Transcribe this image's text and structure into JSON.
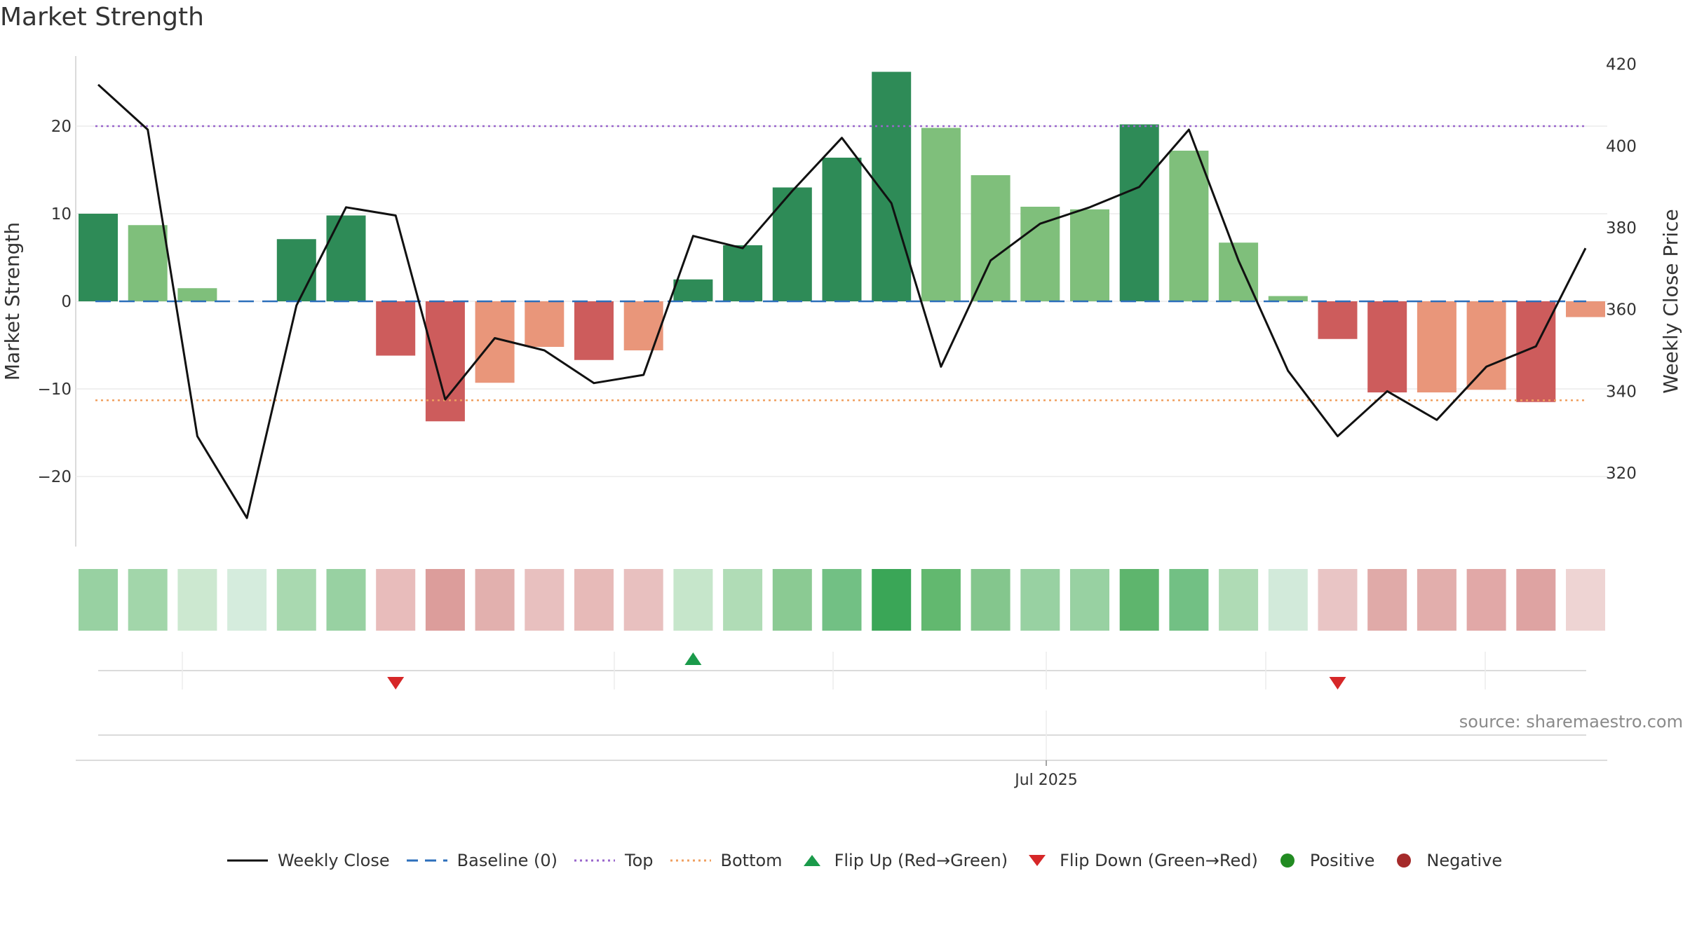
{
  "title": "Market Strength",
  "source": "source: sharemaestro.com",
  "chart_data": {
    "type": "bar",
    "left_axis": {
      "label": "Market Strength",
      "ylim": [
        -28,
        28
      ],
      "ticks": [
        -20,
        -10,
        0,
        10,
        20
      ],
      "tick_labels": [
        "−20",
        "−10",
        "0",
        "10",
        "20"
      ]
    },
    "right_axis": {
      "label": "Weekly Close Price",
      "ylim": [
        302,
        422
      ],
      "ticks": [
        320,
        340,
        360,
        380,
        400,
        420
      ],
      "tick_labels": [
        "320",
        "340",
        "360",
        "380",
        "400",
        "420"
      ]
    },
    "x_label": "Jul 2025",
    "strength": [
      10,
      8.7,
      1.5,
      0,
      7.1,
      9.8,
      -6.2,
      -13.7,
      -9.3,
      -5.2,
      -6.7,
      -5.6,
      2.5,
      6.4,
      13,
      16.4,
      26.2,
      19.8,
      14.4,
      10.8,
      10.5,
      20.2,
      17.2,
      6.7,
      0.6,
      -4.3,
      -10.4,
      -10.4,
      -10.1,
      -11.5,
      -1.8
    ],
    "bar_colors": [
      "#2e8b57",
      "#7fbf7b",
      "#7fbf7b",
      "#7fbf7b",
      "#2e8b57",
      "#2e8b57",
      "#cd5c5c",
      "#cd5c5c",
      "#e9967a",
      "#e9967a",
      "#cd5c5c",
      "#e9967a",
      "#2e8b57",
      "#2e8b57",
      "#2e8b57",
      "#2e8b57",
      "#2e8b57",
      "#7fbf7b",
      "#7fbf7b",
      "#7fbf7b",
      "#7fbf7b",
      "#2e8b57",
      "#7fbf7b",
      "#7fbf7b",
      "#7fbf7b",
      "#cd5c5c",
      "#cd5c5c",
      "#e9967a",
      "#e9967a",
      "#cd5c5c",
      "#e9967a"
    ],
    "weekly_close": [
      415,
      404,
      329,
      309,
      361,
      385,
      383,
      338,
      353,
      350,
      342,
      344,
      378,
      375,
      389,
      402,
      386,
      346,
      372,
      381,
      385,
      390,
      404,
      372,
      345,
      329,
      340,
      333,
      346,
      351,
      375
    ],
    "baseline": 0,
    "top": 20,
    "bottom": -11.3,
    "heat_colors": [
      "#98d1a2",
      "#a2d6aa",
      "#cce8d0",
      "#d5ecdd",
      "#a9d9b0",
      "#98d1a2",
      "#e8bcbb",
      "#dc9d9b",
      "#e2b0ae",
      "#e8c0bf",
      "#e7bab8",
      "#e8c0bf",
      "#c6e6cb",
      "#b0dcb6",
      "#8bca93",
      "#72c084",
      "#3aa657",
      "#62b86f",
      "#84c68d",
      "#98d1a2",
      "#98d1a2",
      "#5eb56d",
      "#72c084",
      "#afdbb5",
      "#d2eada",
      "#e9c5c5",
      "#e0aaa8",
      "#e2aeac",
      "#e1a8a7",
      "#dea3a2",
      "#eed4d3"
    ],
    "flip_up_weeks": [
      12
    ],
    "flip_down_weeks": [
      6,
      25
    ],
    "colors": {
      "weekly_close": "#111111",
      "baseline": "#2c6fbb",
      "top": "#9966cc",
      "bottom": "#f0a060",
      "flip_up": "#1a9a4a",
      "flip_down": "#d62728",
      "positive": "#228b22",
      "negative": "#a52a2a"
    }
  },
  "legend": [
    {
      "key": "weekly_close",
      "label": "Weekly Close",
      "icon": "solid-line"
    },
    {
      "key": "baseline",
      "label": "Baseline (0)",
      "icon": "dashed-line"
    },
    {
      "key": "top",
      "label": "Top",
      "icon": "dotted-line"
    },
    {
      "key": "bottom",
      "label": "Bottom",
      "icon": "dotted-line"
    },
    {
      "key": "flip_up",
      "label": "Flip Up (Red→Green)",
      "icon": "triangle-up"
    },
    {
      "key": "flip_down",
      "label": "Flip Down (Green→Red)",
      "icon": "triangle-down"
    },
    {
      "key": "positive",
      "label": "Positive",
      "icon": "circle"
    },
    {
      "key": "negative",
      "label": "Negative",
      "icon": "circle"
    }
  ]
}
